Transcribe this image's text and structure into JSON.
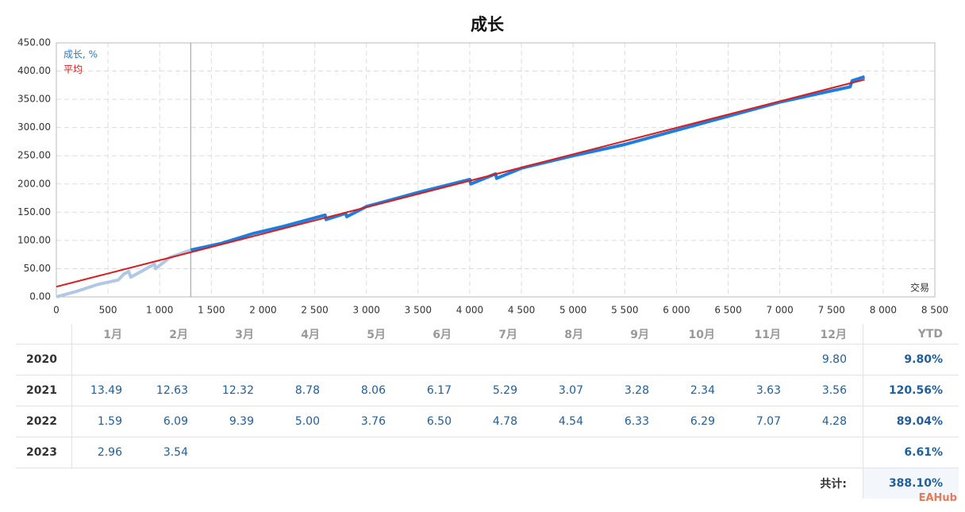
{
  "chart_data": {
    "type": "line",
    "title": "成长",
    "x_label": "交易",
    "xlim": [
      0,
      8500
    ],
    "ylim": [
      0,
      450
    ],
    "grid": true,
    "legend": "upper left",
    "vline": 1300,
    "faded_color": "#b0c8e6",
    "xticks": [
      0,
      500,
      {
        "value": 1000,
        "label": "1 000"
      },
      {
        "value": 1500,
        "label": "1 500"
      },
      {
        "value": 2000,
        "label": "2 000"
      },
      {
        "value": 2500,
        "label": "2 500"
      },
      {
        "value": 3000,
        "label": "3 000"
      },
      {
        "value": 3500,
        "label": "3 500"
      },
      {
        "value": 4000,
        "label": "4 000"
      },
      {
        "value": 4500,
        "label": "4 500"
      },
      {
        "value": 5000,
        "label": "5 000"
      },
      {
        "value": 5500,
        "label": "5 500"
      },
      {
        "value": 6000,
        "label": "6 000"
      },
      {
        "value": 6500,
        "label": "6 500"
      },
      {
        "value": 7000,
        "label": "7 000"
      },
      {
        "value": 7500,
        "label": "7 500"
      },
      {
        "value": 8000,
        "label": "8 000"
      },
      {
        "value": 8500,
        "label": "8 500"
      }
    ],
    "yticks": [
      {
        "value": 0,
        "label": "0.00"
      },
      {
        "value": 50,
        "label": "50.00"
      },
      {
        "value": 100,
        "label": "100.00"
      },
      {
        "value": 150,
        "label": "150.00"
      },
      {
        "value": 200,
        "label": "200.00"
      },
      {
        "value": 250,
        "label": "250.00"
      },
      {
        "value": 300,
        "label": "300.00"
      },
      {
        "value": 350,
        "label": "350.00"
      },
      {
        "value": 400,
        "label": "400.00"
      },
      {
        "value": 450,
        "label": "450.00"
      }
    ],
    "series": [
      {
        "name": "成长, %",
        "color": "#1a7fe0",
        "x": [
          0,
          200,
          400,
          600,
          650,
          700,
          720,
          950,
          960,
          1100,
          1300,
          1600,
          1900,
          2200,
          2600,
          2610,
          2800,
          2810,
          3000,
          3500,
          4000,
          4010,
          4250,
          4260,
          4500,
          5000,
          5500,
          6000,
          6500,
          7000,
          7500,
          7680,
          7700,
          7820
        ],
        "values": [
          0,
          10,
          22,
          30,
          40,
          45,
          35,
          58,
          50,
          70,
          83,
          95,
          112,
          125,
          145,
          137,
          148,
          142,
          160,
          185,
          208,
          200,
          218,
          210,
          228,
          250,
          270,
          295,
          320,
          345,
          365,
          372,
          383,
          390
        ]
      },
      {
        "name": "平均",
        "color": "#e01a1a",
        "x": [
          0,
          7820
        ],
        "values": [
          18,
          385
        ]
      }
    ]
  },
  "table": {
    "header": [
      "1月",
      "2月",
      "3月",
      "4月",
      "5月",
      "6月",
      "7月",
      "8月",
      "9月",
      "10月",
      "11月",
      "12月",
      "YTD"
    ],
    "rows": [
      {
        "year": "2020",
        "months": [
          null,
          null,
          null,
          null,
          null,
          null,
          null,
          null,
          null,
          null,
          null,
          "9.80"
        ],
        "ytd": "9.80%"
      },
      {
        "year": "2021",
        "months": [
          "13.49",
          "12.63",
          "12.32",
          "8.78",
          "8.06",
          "6.17",
          "5.29",
          "3.07",
          "3.28",
          "2.34",
          "3.63",
          "3.56"
        ],
        "ytd": "120.56%"
      },
      {
        "year": "2022",
        "months": [
          "1.59",
          "6.09",
          "9.39",
          "5.00",
          "3.76",
          "6.50",
          "4.78",
          "4.54",
          "6.33",
          "6.29",
          "7.07",
          "4.28"
        ],
        "ytd": "89.04%"
      },
      {
        "year": "2023",
        "months": [
          "2.96",
          "3.54",
          null,
          null,
          null,
          null,
          null,
          null,
          null,
          null,
          null,
          null
        ],
        "ytd": "6.61%"
      }
    ],
    "total_label": "共计:",
    "total": "388.10%"
  },
  "watermark": "EAHub"
}
